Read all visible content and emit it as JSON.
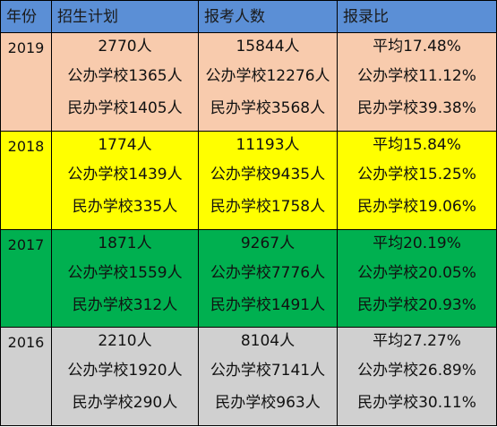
{
  "header": {
    "year": "年份",
    "plan": "招生计划",
    "applicants": "报考人数",
    "ratio": "报录比"
  },
  "rows": [
    {
      "year": "2019",
      "bg": "#f8cbad",
      "plan": [
        "2770人",
        "公办学校1365人",
        "民办学校1405人"
      ],
      "applicants": [
        "15844人",
        "公办学校12276人",
        "民办学校3568人"
      ],
      "ratio": [
        "平均17.48%",
        "公办学校11.12%",
        "民办学校39.38%"
      ]
    },
    {
      "year": "2018",
      "bg": "#ffff00",
      "plan": [
        "1774人",
        "公办学校1439人",
        "民办学校335人"
      ],
      "applicants": [
        "11193人",
        "公办学校9435人",
        "民办学校1758人"
      ],
      "ratio": [
        "平均15.84%",
        "公办学校15.25%",
        "民办学校19.06%"
      ]
    },
    {
      "year": "2017",
      "bg": "#00b050",
      "plan": [
        "1871人",
        "公办学校1559人",
        "民办学校312人"
      ],
      "applicants": [
        "9267人",
        "公办学校7776人",
        "民办学校1491人"
      ],
      "ratio": [
        "平均20.19%",
        "公办学校20.05%",
        "民办学校20.93%"
      ]
    },
    {
      "year": "2016",
      "bg": "#d0d0d0",
      "plan": [
        "2210人",
        "公办学校1920人",
        "民办学校290人"
      ],
      "applicants": [
        "8104人",
        "公办学校7141人",
        "民办学校963人"
      ],
      "ratio": [
        "平均27.27%",
        "公办学校26.89%",
        "民办学校30.11%"
      ]
    }
  ]
}
